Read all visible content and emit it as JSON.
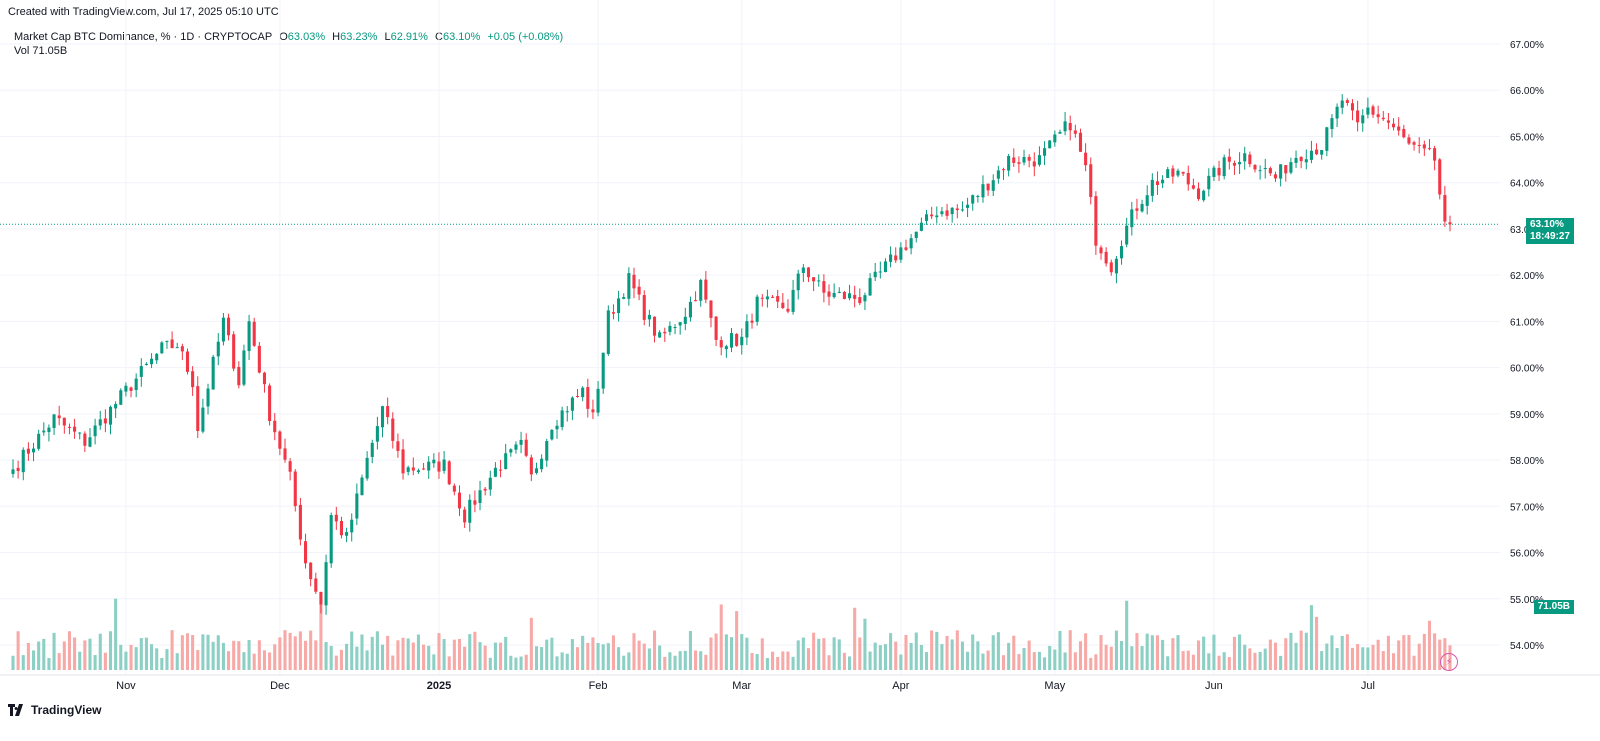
{
  "header": {
    "created_text": "Created with TradingView.com, Jul 17, 2025 05:10 UTC"
  },
  "legend": {
    "symbol": "Market Cap BTC Dominance, % · 1D · CRYPTOCAP",
    "o_label": "O",
    "o_value": "63.03%",
    "h_label": "H",
    "h_value": "63.23%",
    "l_label": "L",
    "l_value": "62.91%",
    "c_label": "C",
    "c_value": "63.10%",
    "change": "+0.05 (+0.08%)",
    "vol_label": "Vol",
    "vol_value": "71.05B"
  },
  "price_tag": {
    "price": "63.10%",
    "countdown": "18:49:27"
  },
  "volume_tag": "71.05B",
  "footer": {
    "brand": "TradingView"
  },
  "colors": {
    "up": "#089981",
    "down": "#f23645",
    "up_vol": "#8ccfc4",
    "down_vol": "#f7a9a7",
    "grid": "#f0f3fa"
  },
  "icons": {
    "logo": "tradingview-logo-icon",
    "bolt": "lightning-icon"
  },
  "chart_data": {
    "type": "candlestick",
    "title": "Market Cap BTC Dominance, % · 1D · CRYPTOCAP",
    "y_axis_labels": [
      "67.00%",
      "66.00%",
      "65.00%",
      "64.00%",
      "63.00%",
      "62.00%",
      "61.00%",
      "60.00%",
      "59.00%",
      "58.00%",
      "57.00%",
      "56.00%",
      "55.00%",
      "54.00%"
    ],
    "ylim": [
      53.6,
      67.2
    ],
    "x_axis_labels": [
      "Nov",
      "Dec",
      "2025",
      "Feb",
      "Mar",
      "Apr",
      "May",
      "Jun",
      "Jul"
    ],
    "date_range": [
      "2024-10-10",
      "2025-07-17"
    ],
    "close_anchors": [
      {
        "date": "2024-10-10",
        "close": 57.8
      },
      {
        "date": "2024-10-18",
        "close": 58.9
      },
      {
        "date": "2024-10-24",
        "close": 58.4
      },
      {
        "date": "2024-11-01",
        "close": 59.5
      },
      {
        "date": "2024-11-08",
        "close": 60.4
      },
      {
        "date": "2024-11-11",
        "close": 60.5
      },
      {
        "date": "2024-11-14",
        "close": 59.7
      },
      {
        "date": "2024-11-15",
        "close": 58.7
      },
      {
        "date": "2024-11-20",
        "close": 61.0
      },
      {
        "date": "2024-11-23",
        "close": 59.7
      },
      {
        "date": "2024-11-25",
        "close": 61.0
      },
      {
        "date": "2024-11-29",
        "close": 59.0
      },
      {
        "date": "2024-12-03",
        "close": 57.6
      },
      {
        "date": "2024-12-06",
        "close": 55.8
      },
      {
        "date": "2024-12-09",
        "close": 54.9
      },
      {
        "date": "2024-12-11",
        "close": 56.8
      },
      {
        "date": "2024-12-14",
        "close": 56.3
      },
      {
        "date": "2024-12-18",
        "close": 58.0
      },
      {
        "date": "2024-12-21",
        "close": 59.1
      },
      {
        "date": "2024-12-25",
        "close": 57.8
      },
      {
        "date": "2025-01-02",
        "close": 57.9
      },
      {
        "date": "2025-01-06",
        "close": 56.8
      },
      {
        "date": "2025-01-12",
        "close": 57.8
      },
      {
        "date": "2025-01-17",
        "close": 58.3
      },
      {
        "date": "2025-01-19",
        "close": 57.6
      },
      {
        "date": "2025-01-23",
        "close": 58.8
      },
      {
        "date": "2025-01-29",
        "close": 59.5
      },
      {
        "date": "2025-01-31",
        "close": 58.9
      },
      {
        "date": "2025-02-03",
        "close": 61.1
      },
      {
        "date": "2025-02-07",
        "close": 61.9
      },
      {
        "date": "2025-02-10",
        "close": 61.2
      },
      {
        "date": "2025-02-13",
        "close": 60.6
      },
      {
        "date": "2025-02-18",
        "close": 61.2
      },
      {
        "date": "2025-02-21",
        "close": 61.8
      },
      {
        "date": "2025-02-24",
        "close": 60.6
      },
      {
        "date": "2025-03-01",
        "close": 60.6
      },
      {
        "date": "2025-03-04",
        "close": 61.4
      },
      {
        "date": "2025-03-10",
        "close": 61.3
      },
      {
        "date": "2025-03-13",
        "close": 62.2
      },
      {
        "date": "2025-03-17",
        "close": 61.6
      },
      {
        "date": "2025-03-24",
        "close": 61.5
      },
      {
        "date": "2025-03-30",
        "close": 62.3
      },
      {
        "date": "2025-04-03",
        "close": 62.8
      },
      {
        "date": "2025-04-08",
        "close": 63.4
      },
      {
        "date": "2025-04-13",
        "close": 63.4
      },
      {
        "date": "2025-04-18",
        "close": 64.0
      },
      {
        "date": "2025-04-22",
        "close": 64.5
      },
      {
        "date": "2025-04-28",
        "close": 64.5
      },
      {
        "date": "2025-05-04",
        "close": 65.3
      },
      {
        "date": "2025-05-07",
        "close": 64.3
      },
      {
        "date": "2025-05-09",
        "close": 62.8
      },
      {
        "date": "2025-05-12",
        "close": 62.2
      },
      {
        "date": "2025-05-14",
        "close": 62.8
      },
      {
        "date": "2025-05-17",
        "close": 63.5
      },
      {
        "date": "2025-05-20",
        "close": 64.0
      },
      {
        "date": "2025-05-25",
        "close": 64.2
      },
      {
        "date": "2025-05-29",
        "close": 63.8
      },
      {
        "date": "2025-06-03",
        "close": 64.4
      },
      {
        "date": "2025-06-07",
        "close": 64.6
      },
      {
        "date": "2025-06-13",
        "close": 64.1
      },
      {
        "date": "2025-06-17",
        "close": 64.6
      },
      {
        "date": "2025-06-22",
        "close": 64.8
      },
      {
        "date": "2025-06-26",
        "close": 65.8
      },
      {
        "date": "2025-06-29",
        "close": 65.2
      },
      {
        "date": "2025-07-01",
        "close": 65.6
      },
      {
        "date": "2025-07-05",
        "close": 65.3
      },
      {
        "date": "2025-07-09",
        "close": 64.8
      },
      {
        "date": "2025-07-14",
        "close": 64.5
      },
      {
        "date": "2025-07-16",
        "close": 63.0
      },
      {
        "date": "2025-07-17",
        "close": 63.1
      }
    ],
    "volume_max_label": "71.05B"
  }
}
